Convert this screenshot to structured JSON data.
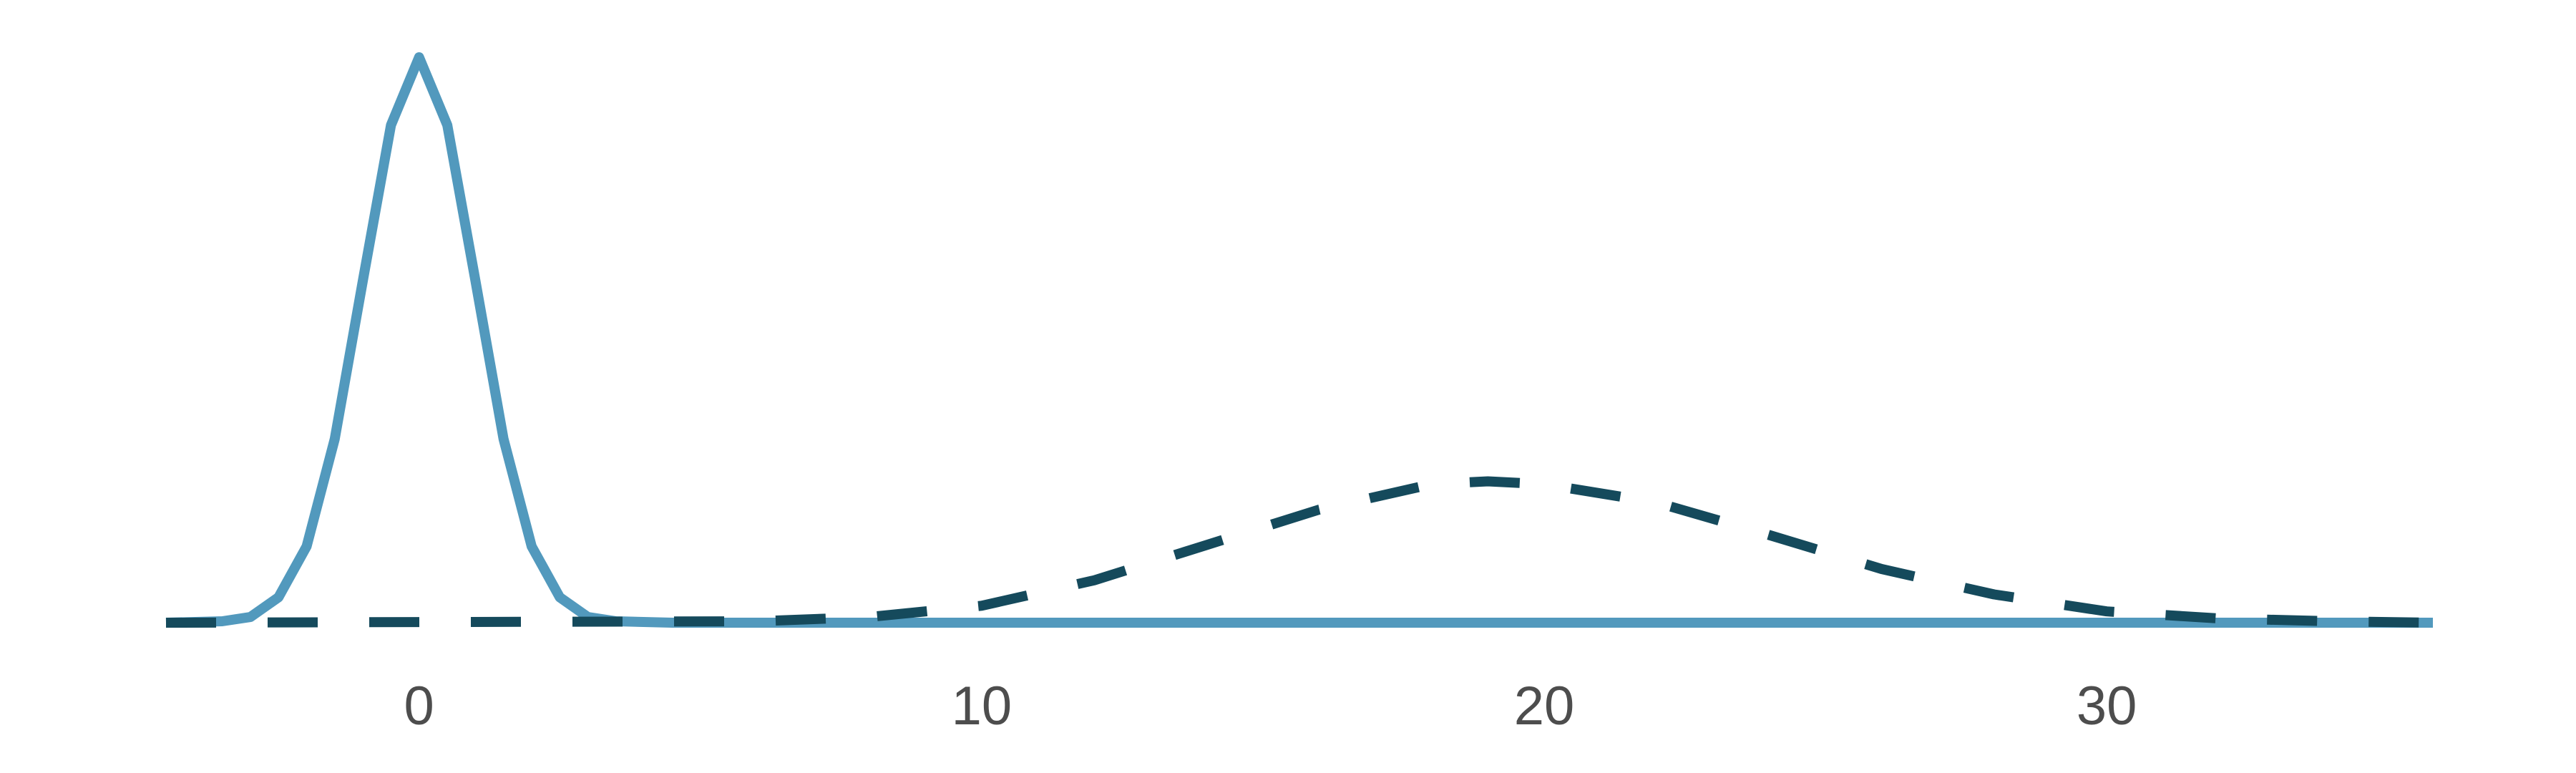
{
  "chart_data": {
    "type": "line",
    "title": "",
    "xlabel": "",
    "ylabel": "",
    "xlim": [
      -4.5,
      35.8
    ],
    "ylim": [
      0,
      0.4
    ],
    "x_ticks": [
      0,
      10,
      20,
      30
    ],
    "x_tick_labels": [
      "0",
      "10",
      "20",
      "30"
    ],
    "grid": false,
    "legend": "none",
    "series": [
      {
        "style": "solid",
        "color": "#5299bd",
        "points": [
          [
            -4.5,
            0.0
          ],
          [
            -3.5,
            0.001
          ],
          [
            -3.0,
            0.004
          ],
          [
            -2.5,
            0.018
          ],
          [
            -2.0,
            0.054
          ],
          [
            -1.5,
            0.13
          ],
          [
            -1.0,
            0.242
          ],
          [
            -0.5,
            0.352
          ],
          [
            0.0,
            0.4
          ],
          [
            0.5,
            0.352
          ],
          [
            1.0,
            0.242
          ],
          [
            1.5,
            0.13
          ],
          [
            2.0,
            0.054
          ],
          [
            2.5,
            0.018
          ],
          [
            3.0,
            0.004
          ],
          [
            3.5,
            0.001
          ],
          [
            4.5,
            0.0
          ],
          [
            35.8,
            0.0
          ]
        ]
      },
      {
        "style": "dashed",
        "color": "#154a5c",
        "points": [
          [
            -4.5,
            0.0
          ],
          [
            6,
            0.001
          ],
          [
            8,
            0.004
          ],
          [
            10,
            0.012
          ],
          [
            12,
            0.03
          ],
          [
            14,
            0.055
          ],
          [
            16,
            0.08
          ],
          [
            18,
            0.098
          ],
          [
            19,
            0.1
          ],
          [
            20,
            0.098
          ],
          [
            22,
            0.085
          ],
          [
            24,
            0.062
          ],
          [
            26,
            0.038
          ],
          [
            28,
            0.02
          ],
          [
            30,
            0.008
          ],
          [
            32,
            0.003
          ],
          [
            34,
            0.001
          ],
          [
            35.8,
            0.0
          ]
        ]
      }
    ]
  }
}
